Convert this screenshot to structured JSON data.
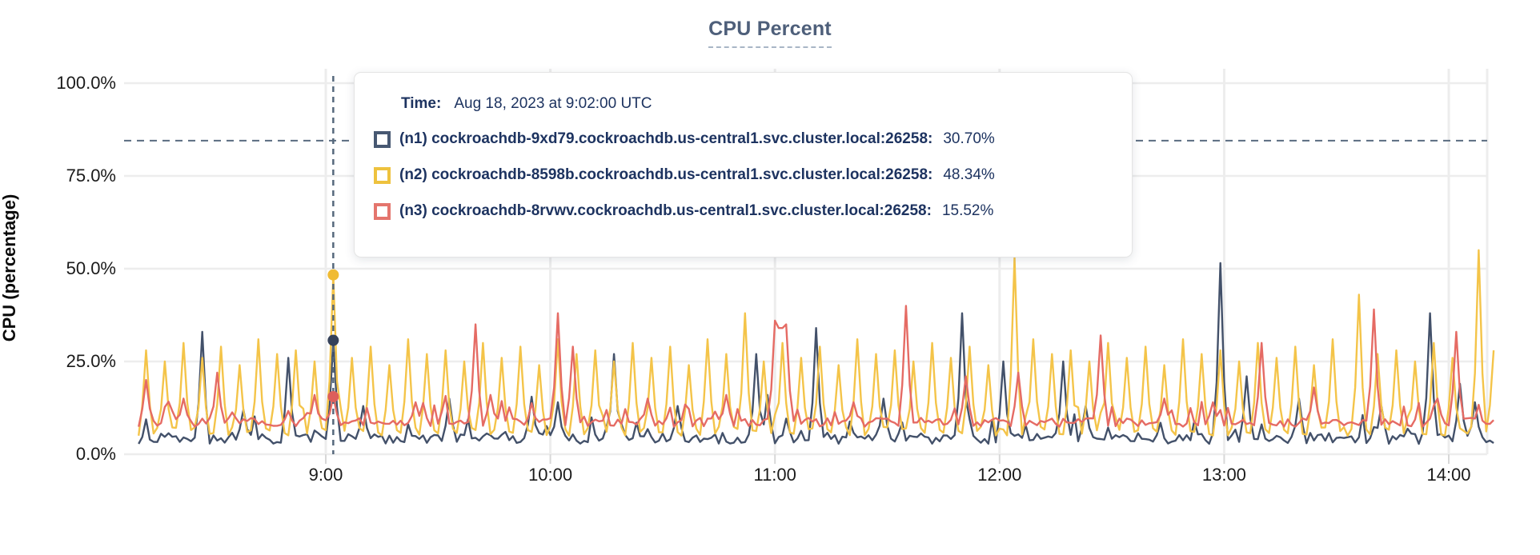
{
  "page": {
    "background": "#ffffff"
  },
  "chart_data": {
    "type": "line",
    "title": "CPU Percent",
    "ylabel": "CPU (percentage)",
    "xlabel": "",
    "ylim": [
      0,
      100
    ],
    "grid": true,
    "y_ticks": [
      {
        "value": 0,
        "label": "0.0%"
      },
      {
        "value": 25,
        "label": "25.0%"
      },
      {
        "value": 50,
        "label": "50.0%"
      },
      {
        "value": 75,
        "label": "75.0%"
      },
      {
        "value": 100,
        "label": "100.0%"
      }
    ],
    "x_ticks": [
      {
        "minute": 540,
        "label": "9:00"
      },
      {
        "minute": 600,
        "label": "10:00"
      },
      {
        "minute": 660,
        "label": "11:00"
      },
      {
        "minute": 720,
        "label": "12:00"
      },
      {
        "minute": 780,
        "label": "13:00"
      },
      {
        "minute": 840,
        "label": "14:00"
      }
    ],
    "time_domain_minutes": [
      490,
      852
    ],
    "threshold_line": {
      "value_pct": 84.5,
      "color": "#5a6c80",
      "style": "dashed"
    },
    "hover": {
      "minute": 542,
      "time_text": "Aug 18, 2023 at 9:02:00 UTC",
      "line_color": "#56687c"
    },
    "series": [
      {
        "key": "n1",
        "label": "(n1) cockroachdb-9xd79.cockroachdb.us-central1.svc.cluster.local:26258:",
        "color": "#43516a",
        "dot_color": "#35415a",
        "baseline_pct": 4.3,
        "hover_value_pct": 30.7,
        "spikes": [
          [
            507,
            33
          ],
          [
            518,
            12
          ],
          [
            530,
            26
          ],
          [
            542,
            30.7
          ],
          [
            550,
            13
          ],
          [
            573,
            15
          ],
          [
            595,
            15.5
          ],
          [
            602,
            14
          ],
          [
            617,
            27
          ],
          [
            634,
            13
          ],
          [
            655,
            27
          ],
          [
            658,
            16
          ],
          [
            671,
            34
          ],
          [
            689,
            15
          ],
          [
            710,
            38
          ],
          [
            721,
            25
          ],
          [
            737,
            25
          ],
          [
            743,
            13
          ],
          [
            779,
            51.5
          ],
          [
            786,
            21
          ],
          [
            800,
            15
          ],
          [
            822,
            13
          ],
          [
            835,
            38
          ],
          [
            843,
            19
          ],
          [
            847,
            14
          ]
        ]
      },
      {
        "key": "n2",
        "label": "(n2) cockroachdb-8598b.cockroachdb.us-central1.svc.cluster.local:26258:",
        "color": "#f4c449",
        "dot_color": "#f0bb33",
        "baseline_pct": 6.2,
        "hover_value_pct": 48.34,
        "spikes": [
          [
            492,
            28
          ],
          [
            497,
            25
          ],
          [
            502,
            30
          ],
          [
            507,
            26
          ],
          [
            512,
            29
          ],
          [
            517,
            24
          ],
          [
            522,
            31
          ],
          [
            527,
            27
          ],
          [
            532,
            28
          ],
          [
            537,
            25
          ],
          [
            542,
            48.34
          ],
          [
            547,
            26
          ],
          [
            552,
            29
          ],
          [
            557,
            24
          ],
          [
            562,
            31
          ],
          [
            567,
            27
          ],
          [
            572,
            28
          ],
          [
            577,
            25
          ],
          [
            582,
            30
          ],
          [
            587,
            26
          ],
          [
            592,
            29
          ],
          [
            597,
            24
          ],
          [
            602,
            31
          ],
          [
            607,
            27
          ],
          [
            612,
            28
          ],
          [
            617,
            25
          ],
          [
            622,
            30
          ],
          [
            627,
            26
          ],
          [
            632,
            29
          ],
          [
            637,
            24
          ],
          [
            642,
            31
          ],
          [
            647,
            27
          ],
          [
            652,
            38
          ],
          [
            657,
            25
          ],
          [
            662,
            30
          ],
          [
            667,
            26
          ],
          [
            672,
            29
          ],
          [
            677,
            24
          ],
          [
            682,
            31
          ],
          [
            687,
            27
          ],
          [
            692,
            28
          ],
          [
            697,
            25
          ],
          [
            702,
            30
          ],
          [
            707,
            26
          ],
          [
            712,
            29
          ],
          [
            717,
            24
          ],
          [
            724,
            53
          ],
          [
            729,
            31
          ],
          [
            734,
            27
          ],
          [
            739,
            28
          ],
          [
            744,
            25
          ],
          [
            749,
            30
          ],
          [
            754,
            26
          ],
          [
            759,
            29
          ],
          [
            764,
            24
          ],
          [
            769,
            31
          ],
          [
            774,
            27
          ],
          [
            779,
            28
          ],
          [
            784,
            25
          ],
          [
            789,
            30
          ],
          [
            794,
            26
          ],
          [
            799,
            29
          ],
          [
            804,
            24
          ],
          [
            809,
            31
          ],
          [
            816,
            43
          ],
          [
            821,
            27
          ],
          [
            826,
            28
          ],
          [
            831,
            25
          ],
          [
            836,
            30
          ],
          [
            841,
            26
          ],
          [
            848,
            55
          ],
          [
            852,
            28
          ]
        ]
      },
      {
        "key": "n3",
        "label": "(n3) cockroachdb-8rvwv.cockroachdb.us-central1.svc.cluster.local:26258:",
        "color": "#e56b64",
        "dot_color": "#dd5f5b",
        "baseline_pct": 8.6,
        "hover_value_pct": 15.52,
        "spikes": [
          [
            492,
            20
          ],
          [
            502,
            15
          ],
          [
            511,
            22
          ],
          [
            537,
            16
          ],
          [
            542,
            15.52
          ],
          [
            564,
            14
          ],
          [
            580,
            35
          ],
          [
            584,
            16
          ],
          [
            602,
            38
          ],
          [
            606,
            29
          ],
          [
            626,
            15
          ],
          [
            647,
            16
          ],
          [
            660,
            36
          ],
          [
            661,
            34
          ],
          [
            662,
            34
          ],
          [
            663,
            35
          ],
          [
            681,
            14
          ],
          [
            695,
            40
          ],
          [
            711,
            21
          ],
          [
            725,
            22
          ],
          [
            747,
            32
          ],
          [
            764,
            15
          ],
          [
            777,
            14
          ],
          [
            790,
            30
          ],
          [
            804,
            18
          ],
          [
            820,
            39
          ],
          [
            837,
            15
          ],
          [
            842,
            33
          ]
        ]
      }
    ],
    "gridline_color": "#ededed",
    "axis_line_color": "#e6e6e6"
  },
  "tooltip": {
    "time_label": "Time:",
    "time_value": "Aug 18, 2023 at 9:02:00 UTC",
    "rows": [
      {
        "label": "(n1) cockroachdb-9xd79.cockroachdb.us-central1.svc.cluster.local:26258:",
        "value": "30.70%",
        "swatch_color": "#475872"
      },
      {
        "label": "(n2) cockroachdb-8598b.cockroachdb.us-central1.svc.cluster.local:26258:",
        "value": "48.34%",
        "swatch_color": "#eec23e"
      },
      {
        "label": "(n3) cockroachdb-8rvwv.cockroachdb.us-central1.svc.cluster.local:26258:",
        "value": "15.52%",
        "swatch_color": "#e4756d"
      }
    ]
  }
}
